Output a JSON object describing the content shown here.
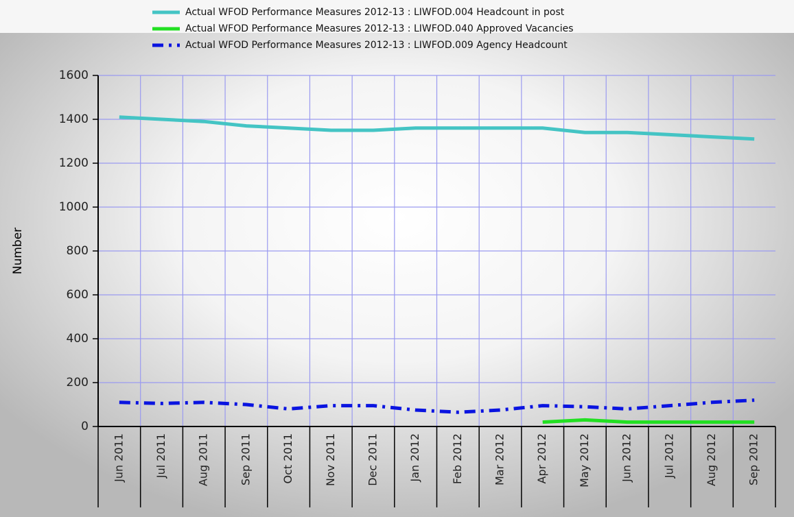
{
  "chart_data": {
    "type": "line",
    "ylabel": "Number",
    "categories": [
      "Jun 2011",
      "Jul 2011",
      "Aug 2011",
      "Sep 2011",
      "Oct 2011",
      "Nov 2011",
      "Dec 2011",
      "Jan 2012",
      "Feb 2012",
      "Mar 2012",
      "Apr 2012",
      "May 2012",
      "Jun 2012",
      "Jul 2012",
      "Aug 2012",
      "Sep 2012"
    ],
    "series": [
      {
        "name": "Actual WFOD Performance Measures 2012-13 : LIWFOD.004 Headcount in post",
        "color": "#44c4c4",
        "dash": "solid",
        "values": [
          1410,
          1400,
          1390,
          1370,
          1360,
          1350,
          1350,
          1360,
          1360,
          1360,
          1360,
          1340,
          1340,
          1330,
          1320,
          1310
        ]
      },
      {
        "name": "Actual WFOD Performance Measures 2012-13 : LIWFOD.040 Approved Vacancies",
        "color": "#22e022",
        "dash": "solid",
        "values": [
          null,
          null,
          null,
          null,
          null,
          null,
          null,
          null,
          null,
          null,
          20,
          30,
          20,
          20,
          20,
          20
        ]
      },
      {
        "name": "Actual WFOD Performance Measures 2012-13 : LIWFOD.009 Agency Headcount",
        "color": "#0a14e0",
        "dash": "dashdot",
        "values": [
          110,
          105,
          110,
          100,
          80,
          95,
          95,
          75,
          65,
          75,
          95,
          90,
          80,
          95,
          110,
          120
        ]
      }
    ],
    "ylim": [
      0,
      1600
    ],
    "yticks": [
      0,
      200,
      400,
      600,
      800,
      1000,
      1200,
      1400,
      1600
    ],
    "grid": true
  }
}
